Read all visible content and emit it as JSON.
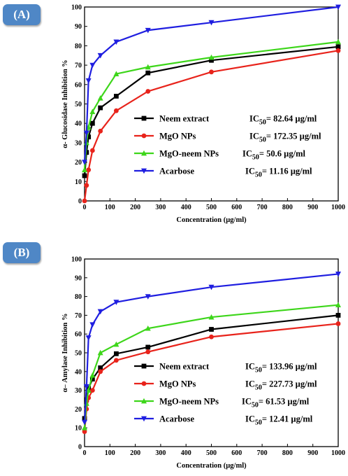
{
  "chart_data": [
    {
      "panel_label": "(A)",
      "type": "line",
      "xlabel": "Concentration (µg/ml)",
      "ylabel": "α- Glucosidase Inhibition %",
      "xlim": [
        0,
        1000
      ],
      "ylim": [
        0,
        100
      ],
      "xticks": [
        0,
        100,
        200,
        300,
        400,
        500,
        600,
        700,
        800,
        900,
        1000
      ],
      "yticks": [
        0,
        10,
        20,
        30,
        40,
        50,
        60,
        70,
        80,
        90,
        100
      ],
      "legend_position": "center",
      "series": [
        {
          "name": "Neem extract",
          "ic50_prefix": "IC",
          "ic50_sub": "50",
          "ic50_value": "= 82.64 µg/ml",
          "color": "#000000",
          "marker": "square",
          "x": [
            0,
            7.8,
            15.6,
            31.25,
            62.5,
            125,
            250,
            500,
            1000
          ],
          "y": [
            13,
            25,
            33,
            40,
            48,
            54,
            66,
            72.5,
            79.5
          ]
        },
        {
          "name": "MgO NPs",
          "ic50_prefix": "IC",
          "ic50_sub": "50",
          "ic50_value": "= 172.35 µg/ml",
          "color": "#e8231b",
          "marker": "circle",
          "x": [
            0,
            7.8,
            15.6,
            31.25,
            62.5,
            125,
            250,
            500,
            1000
          ],
          "y": [
            0,
            8,
            16,
            26,
            36,
            46.5,
            56.5,
            66.5,
            77.5
          ]
        },
        {
          "name": "MgO-neem NPs",
          "ic50_prefix": "IC",
          "ic50_sub": "50",
          "ic50_value": "= 50.6 µg/ml",
          "color": "#3dd61a",
          "marker": "triangle-up",
          "x": [
            0,
            7.8,
            15.6,
            31.25,
            62.5,
            125,
            250,
            500,
            1000
          ],
          "y": [
            16,
            30,
            38,
            46,
            53,
            65.5,
            69,
            74,
            82
          ]
        },
        {
          "name": "Acarbose",
          "ic50_prefix": "IC",
          "ic50_sub": "50",
          "ic50_value": "= 11.16 µg/ml",
          "color": "#1f1ee0",
          "marker": "triangle-down",
          "x": [
            0,
            7.8,
            15.6,
            31.25,
            62.5,
            125,
            250,
            500,
            1000
          ],
          "y": [
            20,
            35,
            62,
            70,
            75,
            82,
            88,
            92,
            100
          ]
        }
      ]
    },
    {
      "panel_label": "(B)",
      "type": "line",
      "xlabel": "Concentration (µg/ml)",
      "ylabel": "α– Amylase Inhibition %",
      "xlim": [
        0,
        1000
      ],
      "ylim": [
        0,
        100
      ],
      "xticks": [
        0,
        100,
        200,
        300,
        400,
        500,
        600,
        700,
        800,
        900,
        1000
      ],
      "yticks": [
        0,
        10,
        20,
        30,
        40,
        50,
        60,
        70,
        80,
        90,
        100
      ],
      "legend_position": "lower-center",
      "series": [
        {
          "name": "Neem extract",
          "ic50_prefix": "IC",
          "ic50_sub": "50",
          "ic50_value": "= 133.96 µg/ml",
          "color": "#000000",
          "marker": "square",
          "x": [
            0,
            7.8,
            15.6,
            31.25,
            62.5,
            125,
            250,
            500,
            1000
          ],
          "y": [
            15,
            25,
            31,
            36,
            42,
            49.5,
            53,
            62.5,
            70
          ]
        },
        {
          "name": "MgO NPs",
          "ic50_prefix": "IC",
          "ic50_sub": "50",
          "ic50_value": "= 227.73 µg/ml",
          "color": "#e8231b",
          "marker": "circle",
          "x": [
            0,
            7.8,
            15.6,
            31.25,
            62.5,
            125,
            250,
            500,
            1000
          ],
          "y": [
            8,
            20,
            26,
            30,
            40,
            46,
            50.5,
            58.5,
            65.5
          ]
        },
        {
          "name": "MgO-neem NPs",
          "ic50_prefix": "IC",
          "ic50_sub": "50",
          "ic50_value": "= 61.53 µg/ml",
          "color": "#3dd61a",
          "marker": "triangle-up",
          "x": [
            0,
            7.8,
            15.6,
            31.25,
            62.5,
            125,
            250,
            500,
            1000
          ],
          "y": [
            10,
            23,
            30,
            38,
            50,
            54.5,
            63,
            69,
            75.5
          ]
        },
        {
          "name": "Acarbose",
          "ic50_prefix": "IC",
          "ic50_sub": "50",
          "ic50_value": "= 12.41 µg/ml",
          "color": "#1f1ee0",
          "marker": "triangle-down",
          "x": [
            0,
            7.8,
            15.6,
            31.25,
            62.5,
            125,
            250,
            500,
            1000
          ],
          "y": [
            13,
            32,
            58,
            65,
            72,
            77,
            80,
            85,
            92
          ]
        }
      ]
    }
  ]
}
